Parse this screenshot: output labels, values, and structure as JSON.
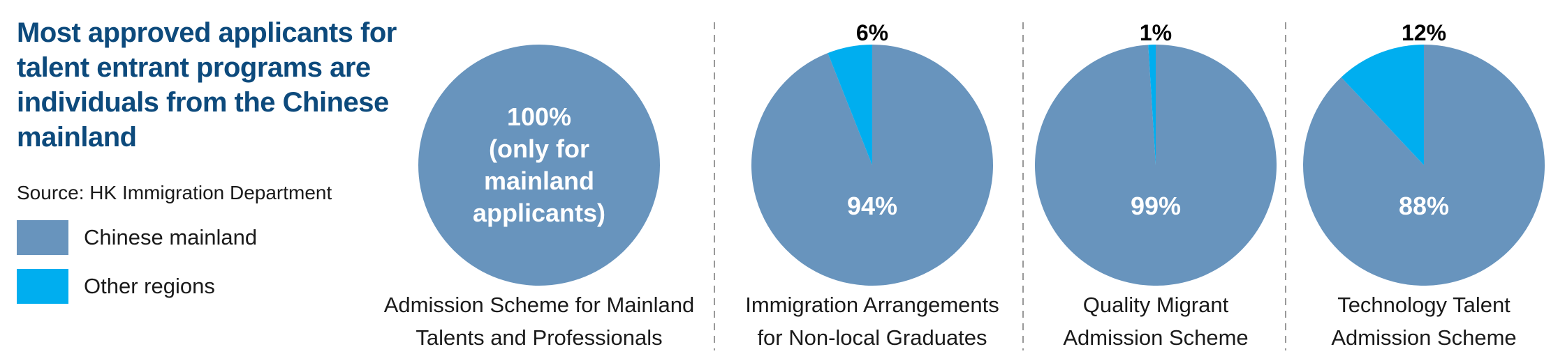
{
  "title": "Most approved applicants for talent entrant programs are individuals from the Chinese mainland",
  "source": "Source: HK Immigration Department",
  "colors": {
    "mainland": "#6894bd",
    "other": "#00aeef",
    "label_inside": "#ffffff",
    "label_outside": "#000000",
    "divider": "#999999"
  },
  "chart_data": {
    "type": "pie",
    "legend": [
      {
        "name": "Chinese mainland",
        "color": "#6894bd"
      },
      {
        "name": "Other regions",
        "color": "#00aeef"
      }
    ],
    "legend_position": "left",
    "charts": [
      {
        "title_lines": [
          "Admission Scheme for Mainland",
          "Talents and Professionals"
        ],
        "slices": [
          {
            "name": "Chinese mainland",
            "value": 100
          }
        ],
        "label_lines": [
          "100%",
          "(only for",
          "mainland",
          "applicants)"
        ]
      },
      {
        "title_lines": [
          "Immigration Arrangements",
          "for Non-local Graduates"
        ],
        "slices": [
          {
            "name": "Chinese mainland",
            "value": 94
          },
          {
            "name": "Other regions",
            "value": 6
          }
        ],
        "labels": {
          "Chinese mainland": "94%",
          "Other regions": "6%"
        }
      },
      {
        "title_lines": [
          "Quality Migrant",
          "Admission Scheme"
        ],
        "slices": [
          {
            "name": "Chinese mainland",
            "value": 99
          },
          {
            "name": "Other regions",
            "value": 1
          }
        ],
        "labels": {
          "Chinese mainland": "99%",
          "Other regions": "1%"
        }
      },
      {
        "title_lines": [
          "Technology Talent",
          "Admission Scheme"
        ],
        "slices": [
          {
            "name": "Chinese mainland",
            "value": 88
          },
          {
            "name": "Other regions",
            "value": 12
          }
        ],
        "labels": {
          "Chinese mainland": "88%",
          "Other regions": "12%"
        }
      }
    ]
  }
}
